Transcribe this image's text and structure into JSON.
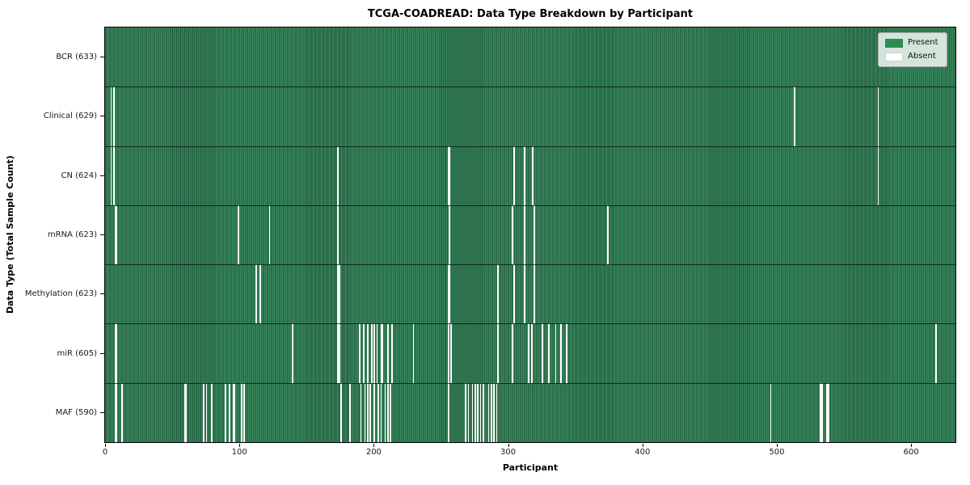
{
  "figure": {
    "title": "TCGA-COADREAD: Data Type Breakdown by Participant",
    "xlabel": "Participant",
    "ylabel": "Data Type (Total Sample Count)"
  },
  "legend": {
    "items": [
      {
        "label": "Present",
        "color": "#2e8b57"
      },
      {
        "label": "Absent",
        "color": "#ffffff"
      }
    ]
  },
  "chart_data": {
    "type": "heatmap",
    "title": "TCGA-COADREAD: Data Type Breakdown by Participant",
    "xlabel": "Participant",
    "ylabel": "Data Type (Total Sample Count)",
    "legend_position": "upper right",
    "legend_entries": [
      "Present",
      "Absent"
    ],
    "present_color": "#2e8b57",
    "absent_color": "#ffffff",
    "n_participants": 633,
    "x_ticks": [
      0,
      100,
      200,
      300,
      400,
      500,
      600
    ],
    "x_range": [
      0,
      633
    ],
    "rows": [
      {
        "name": "BCR",
        "label": "BCR (633)",
        "total": 633,
        "absent": []
      },
      {
        "name": "Clinical",
        "label": "Clinical (629)",
        "total": 629,
        "absent": [
          4,
          6,
          513,
          575
        ]
      },
      {
        "name": "CN",
        "label": "CN (624)",
        "total": 624,
        "absent": [
          4,
          6,
          173,
          255,
          256,
          304,
          312,
          318,
          575
        ]
      },
      {
        "name": "mRNA",
        "label": "mRNA (623)",
        "total": 623,
        "absent": [
          7,
          8,
          99,
          122,
          173,
          256,
          303,
          312,
          319,
          374
        ]
      },
      {
        "name": "Methylation",
        "label": "Methylation (623)",
        "total": 623,
        "absent": [
          112,
          115,
          173,
          174,
          255,
          256,
          292,
          304,
          312,
          319
        ]
      },
      {
        "name": "miR",
        "label": "miR (605)",
        "total": 605,
        "absent": [
          7,
          8,
          139,
          173,
          174,
          189,
          192,
          195,
          198,
          200,
          202,
          205,
          206,
          210,
          213,
          229,
          255,
          257,
          292,
          303,
          315,
          317,
          325,
          330,
          335,
          339,
          343,
          618
        ]
      },
      {
        "name": "MAF",
        "label": "MAF (590)",
        "total": 590,
        "absent": [
          7,
          8,
          12,
          59,
          60,
          73,
          75,
          79,
          89,
          92,
          95,
          96,
          101,
          103,
          175,
          182,
          190,
          193,
          195,
          197,
          200,
          203,
          205,
          208,
          210,
          212,
          255,
          268,
          270,
          273,
          275,
          277,
          279,
          281,
          285,
          287,
          289,
          291,
          495,
          532,
          533,
          537,
          538
        ]
      }
    ]
  }
}
